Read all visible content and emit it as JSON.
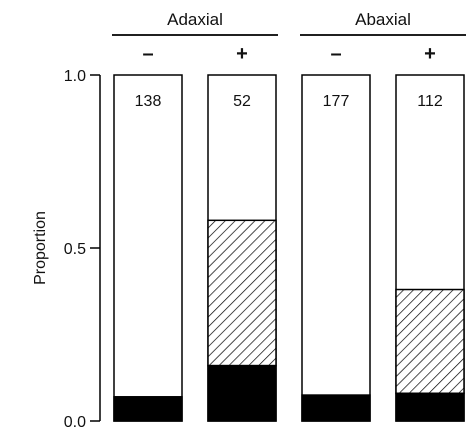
{
  "chart_data": {
    "type": "bar",
    "stacked": true,
    "ylabel": "Proportion",
    "ylim": [
      0,
      1
    ],
    "yticks": [
      {
        "value": 0,
        "label": "0.0"
      },
      {
        "value": 0.5,
        "label": "0.5"
      },
      {
        "value": 1,
        "label": "1.0"
      }
    ],
    "groups": [
      {
        "name": "Adaxial",
        "bars": [
          0,
          1
        ]
      },
      {
        "name": "Abaxial",
        "bars": [
          2,
          3
        ]
      }
    ],
    "bars": [
      {
        "group": "Adaxial",
        "condition": "–",
        "count": "138",
        "solid": 0.07,
        "hatched": 0.0
      },
      {
        "group": "Adaxial",
        "condition": "+",
        "count": "52",
        "solid": 0.16,
        "hatched": 0.42
      },
      {
        "group": "Abaxial",
        "condition": "–",
        "count": "177",
        "solid": 0.075,
        "hatched": 0.0
      },
      {
        "group": "Abaxial",
        "condition": "+",
        "count": "112",
        "solid": 0.08,
        "hatched": 0.3
      }
    ],
    "colors": {
      "solid": "#000000",
      "hatched": "#ffffff",
      "empty": "#ffffff",
      "stroke": "#000000"
    }
  }
}
